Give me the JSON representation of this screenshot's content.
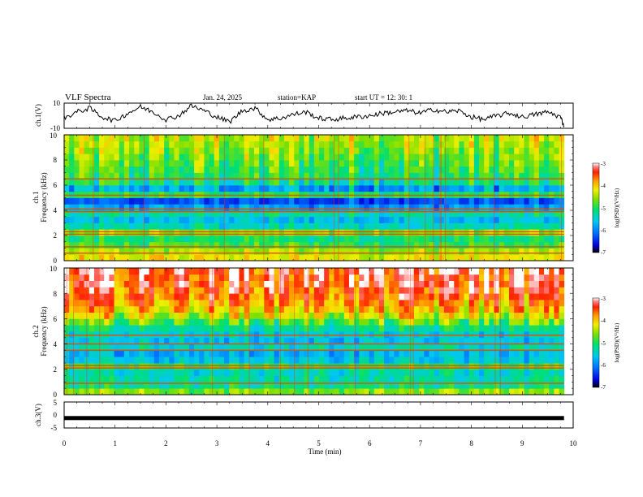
{
  "header": {
    "title": "VLF Spectra",
    "date": "Jan. 24, 2025",
    "station": "station=KAP",
    "start": "start  UT  =   12: 30: 1"
  },
  "chart_data": {
    "type": "heatmap",
    "title": "VLF Spectra",
    "xlabel": "Time (min)",
    "xlim": [
      0,
      10
    ],
    "x_ticks": [
      "0",
      "1",
      "2",
      "3",
      "4",
      "5",
      "6",
      "7",
      "8",
      "9",
      "10"
    ],
    "panels": [
      {
        "id": "ch1-voltage",
        "type": "line",
        "ylabel": "ch.1(V)",
        "ylim": [
          -10,
          10
        ],
        "y_ticks": [
          "10",
          "-10"
        ],
        "t_min": [
          0,
          0.25,
          0.5,
          0.75,
          1,
          1.25,
          1.5,
          1.75,
          2,
          2.25,
          2.5,
          2.75,
          3,
          3.25,
          3.5,
          3.75,
          4,
          4.25,
          4.5,
          4.75,
          5,
          5.25,
          5.5,
          5.75,
          6,
          6.25,
          6.5,
          6.75,
          7,
          7.25,
          7.5,
          7.75,
          8,
          8.25,
          8.5,
          8.75,
          9,
          9.25,
          9.5,
          9.75,
          9.82
        ],
        "volts": [
          -2,
          3,
          6,
          -1,
          -4,
          2,
          7,
          3,
          -3,
          0,
          8,
          4,
          -1,
          -5,
          4,
          6,
          -3,
          -2,
          1,
          3,
          -2,
          -3,
          -2,
          -1,
          0,
          2,
          3,
          4,
          2,
          5,
          3,
          4,
          -1,
          -3,
          0,
          2,
          -1,
          1,
          3,
          -1,
          -8
        ]
      },
      {
        "id": "ch1-spectrogram",
        "type": "heatmap",
        "ylabel": "ch.1",
        "ylabel2": "Frequency (kHz)",
        "ylim": [
          0,
          10
        ],
        "y_ticks": [
          "0",
          "2",
          "4",
          "6",
          "8",
          "10"
        ],
        "band_freq_khz": [
          0.25,
          0.75,
          1.25,
          1.75,
          2.25,
          2.75,
          3.25,
          3.75,
          4.25,
          4.75,
          5.25,
          5.75,
          6.25,
          6.75,
          7.25,
          7.75,
          8.25,
          8.75,
          9.25,
          9.75
        ],
        "band_log_psd": [
          -4.2,
          -4.5,
          -4.9,
          -5.1,
          -4.6,
          -5.4,
          -5.6,
          -5.3,
          -5.9,
          -6.3,
          -5.0,
          -5.8,
          -5.2,
          -5.0,
          -4.9,
          -4.8,
          -4.7,
          -4.6,
          -4.5,
          -4.4
        ],
        "lines_khz": [
          0.6,
          1.1,
          2.1,
          2.3,
          3.9,
          4.1,
          5.2,
          6.5
        ],
        "colorbar_label": "log(PSD)(V²/Hz)",
        "colorbar_range": [
          -7,
          -3
        ],
        "colorbar_ticks": [
          "-3",
          "-4",
          "-5",
          "-6",
          "-7"
        ]
      },
      {
        "id": "ch2-spectrogram",
        "type": "heatmap",
        "ylabel": "ch.2",
        "ylabel2": "Frequency (kHz)",
        "ylim": [
          0,
          10
        ],
        "y_ticks": [
          "0",
          "2",
          "4",
          "6",
          "8",
          "10"
        ],
        "band_freq_khz": [
          0.25,
          0.75,
          1.25,
          1.75,
          2.25,
          2.75,
          3.25,
          3.75,
          4.25,
          4.75,
          5.25,
          5.75,
          6.25,
          6.75,
          7.25,
          7.75,
          8.25,
          8.75,
          9.25,
          9.75
        ],
        "band_log_psd": [
          -4.6,
          -5.2,
          -5.3,
          -5.4,
          -5.0,
          -5.6,
          -5.7,
          -5.4,
          -5.6,
          -5.5,
          -5.2,
          -4.8,
          -4.3,
          -4.0,
          -3.8,
          -3.6,
          -3.5,
          -3.4,
          -3.4,
          -3.3
        ],
        "lines_khz": [
          0.9,
          2.1,
          2.3,
          3.5,
          4.0,
          4.7
        ],
        "colorbar_label": "log(PSD)(V²/Hz)",
        "colorbar_range": [
          -7,
          -3
        ],
        "colorbar_ticks": [
          "-3",
          "-4",
          "-5",
          "-6",
          "-7"
        ]
      },
      {
        "id": "ch3-voltage",
        "type": "line",
        "ylabel": "ch.3(V)",
        "ylim": [
          -5,
          5
        ],
        "y_ticks": [
          "5",
          "0",
          "-5"
        ],
        "t_min": [
          0,
          9.82
        ],
        "volts": [
          -1.2,
          -1.2
        ]
      }
    ]
  }
}
